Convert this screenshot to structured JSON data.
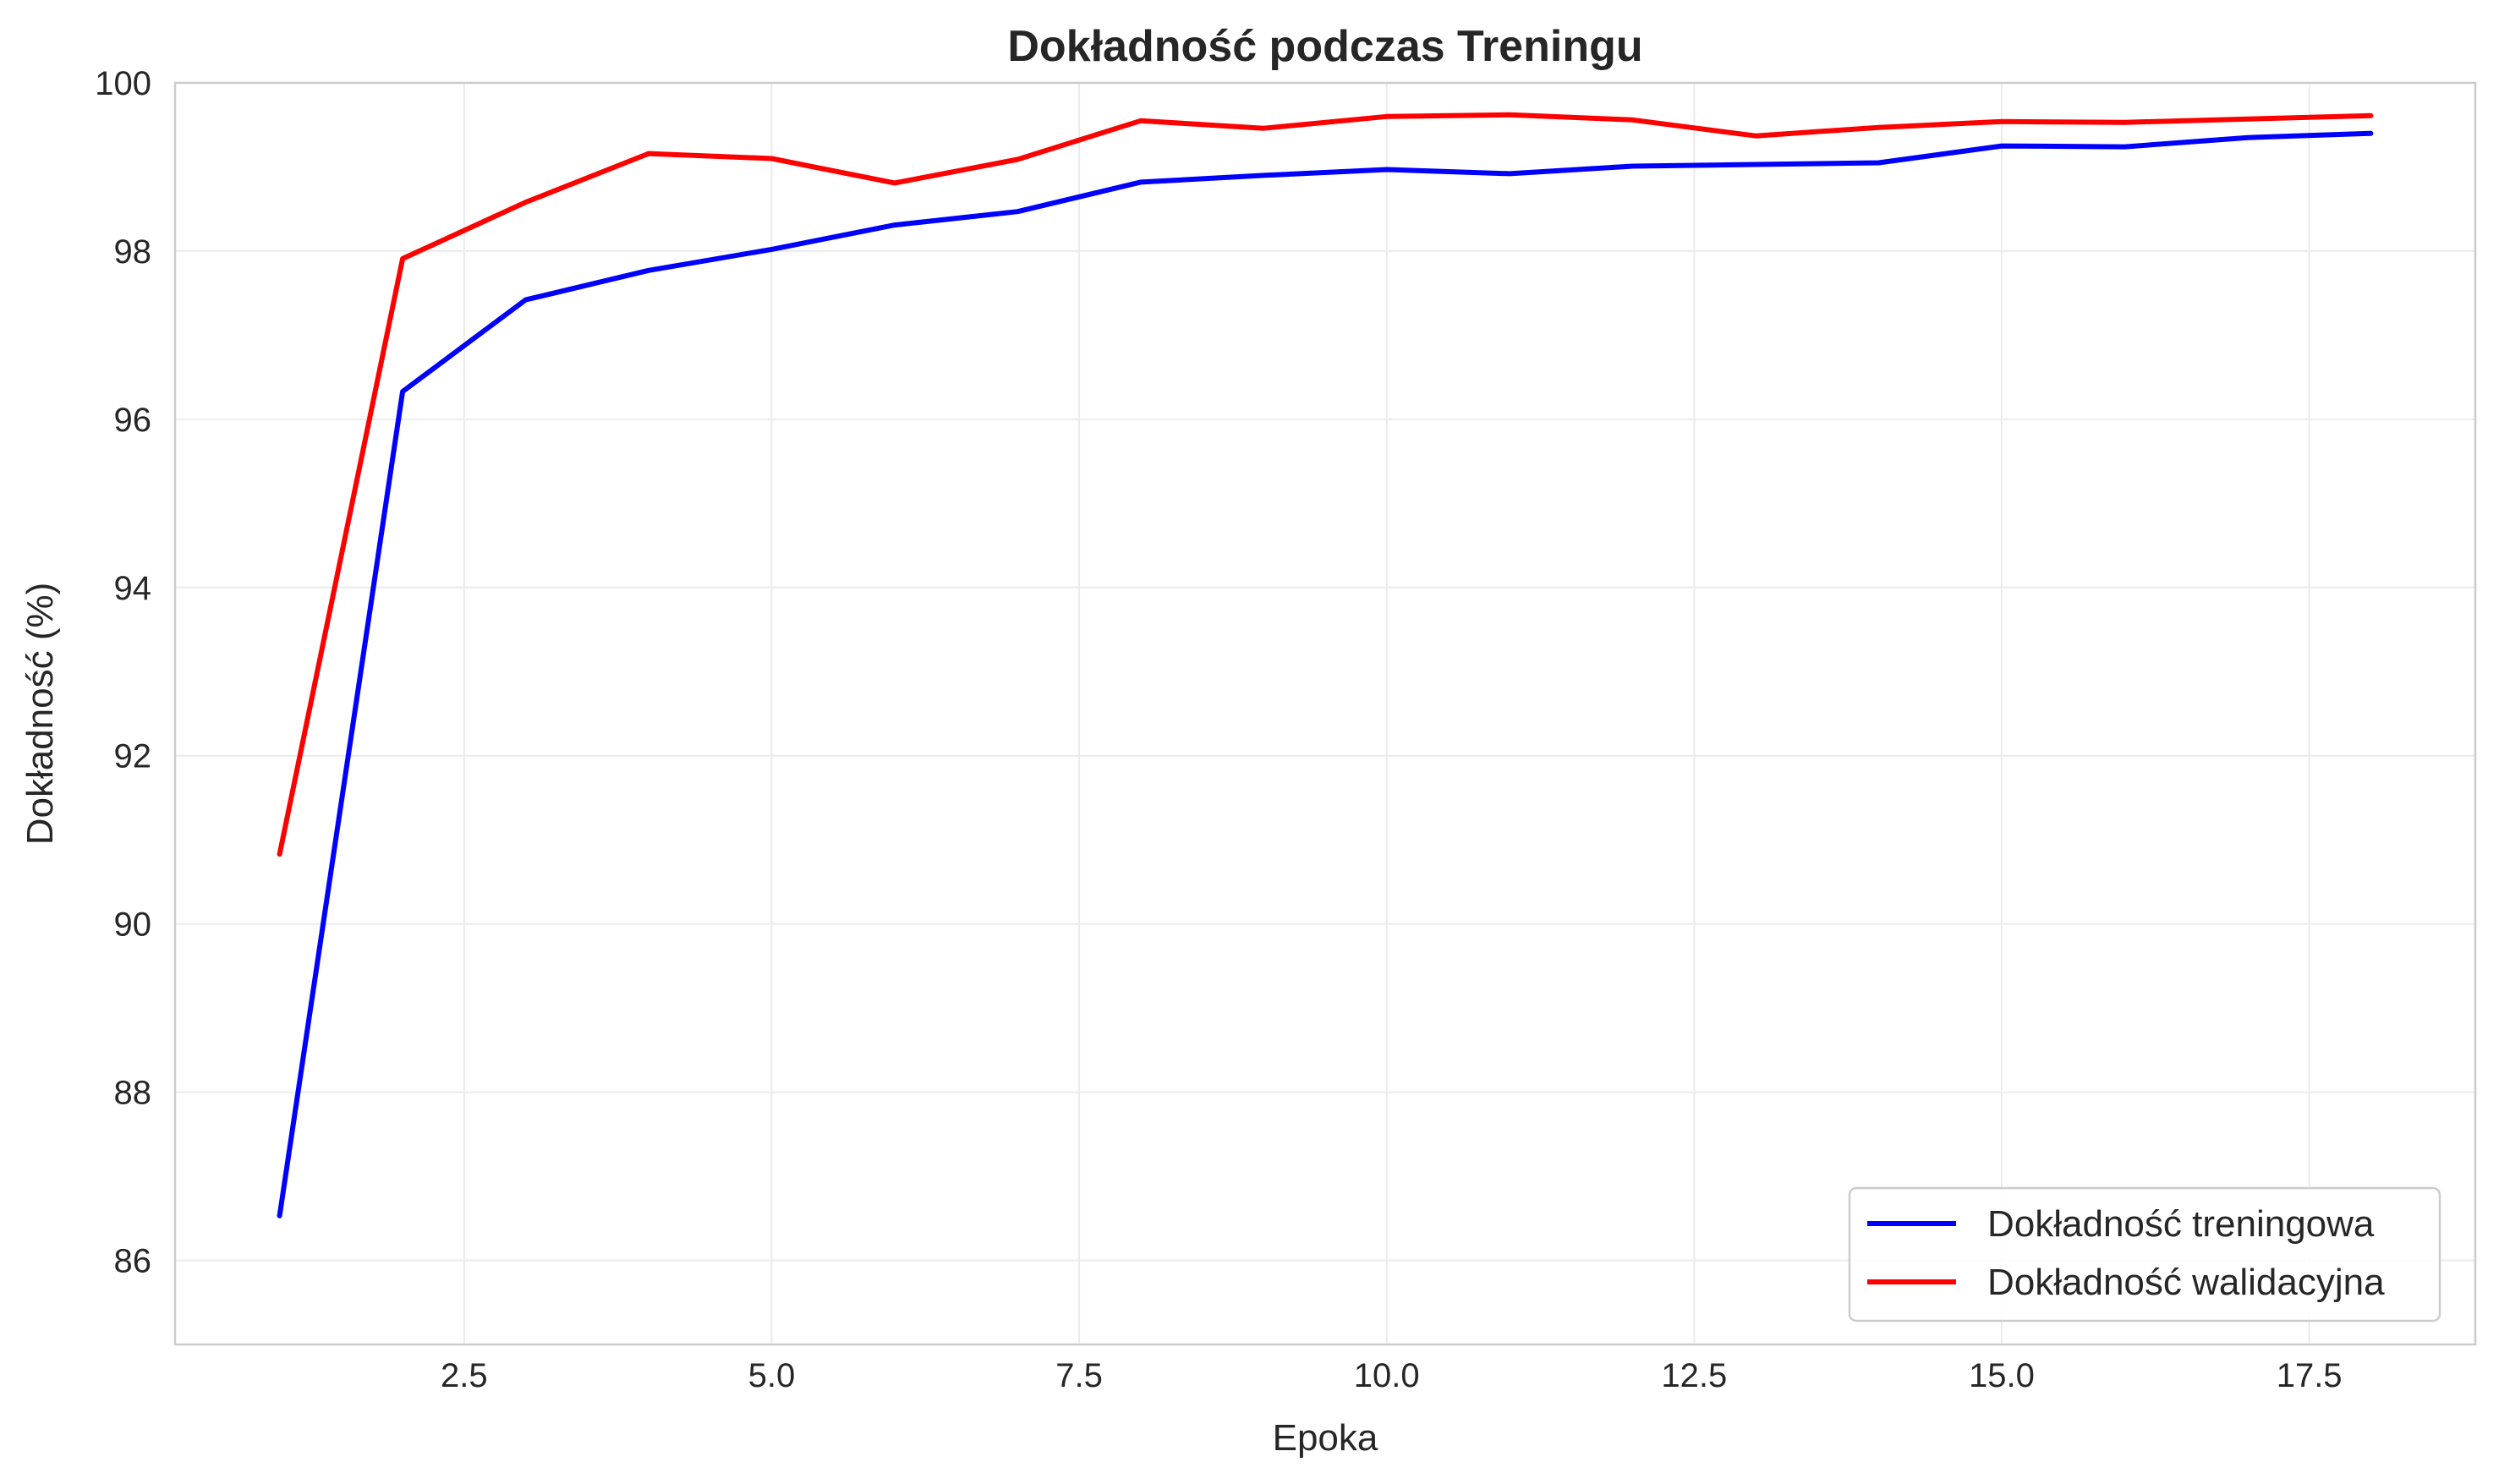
{
  "chart_data": {
    "type": "line",
    "title": "Dokładność podczas Treningu",
    "xlabel": "Epoka",
    "ylabel": "Dokładność (%)",
    "xlim": [
      0.15,
      18.85
    ],
    "ylim": [
      85,
      100
    ],
    "xticks": [
      2.5,
      5.0,
      7.5,
      10.0,
      12.5,
      15.0,
      17.5
    ],
    "xtick_labels": [
      "2.5",
      "5.0",
      "7.5",
      "10.0",
      "12.5",
      "15.0",
      "17.5"
    ],
    "yticks": [
      86,
      88,
      90,
      92,
      94,
      96,
      98,
      100
    ],
    "ytick_labels": [
      "86",
      "88",
      "90",
      "92",
      "94",
      "96",
      "98",
      "100"
    ],
    "grid": true,
    "legend_position": "lower-right",
    "x": [
      1,
      2,
      3,
      4,
      5,
      6,
      7,
      8,
      9,
      10,
      11,
      12,
      13,
      14,
      15,
      16,
      17,
      18
    ],
    "series": [
      {
        "name": "Dokładność treningowa",
        "color": "#0000ff",
        "values": [
          86.53,
          96.33,
          97.42,
          97.77,
          98.02,
          98.31,
          98.47,
          98.82,
          98.9,
          98.97,
          98.92,
          99.01,
          99.03,
          99.05,
          99.25,
          99.24,
          99.35,
          99.4
        ]
      },
      {
        "name": "Dokładność walidacyjna",
        "color": "#ff0000",
        "values": [
          90.83,
          97.91,
          98.58,
          99.16,
          99.1,
          98.81,
          99.09,
          99.55,
          99.46,
          99.6,
          99.62,
          99.56,
          99.37,
          99.47,
          99.54,
          99.53,
          99.57,
          99.61
        ]
      }
    ]
  }
}
